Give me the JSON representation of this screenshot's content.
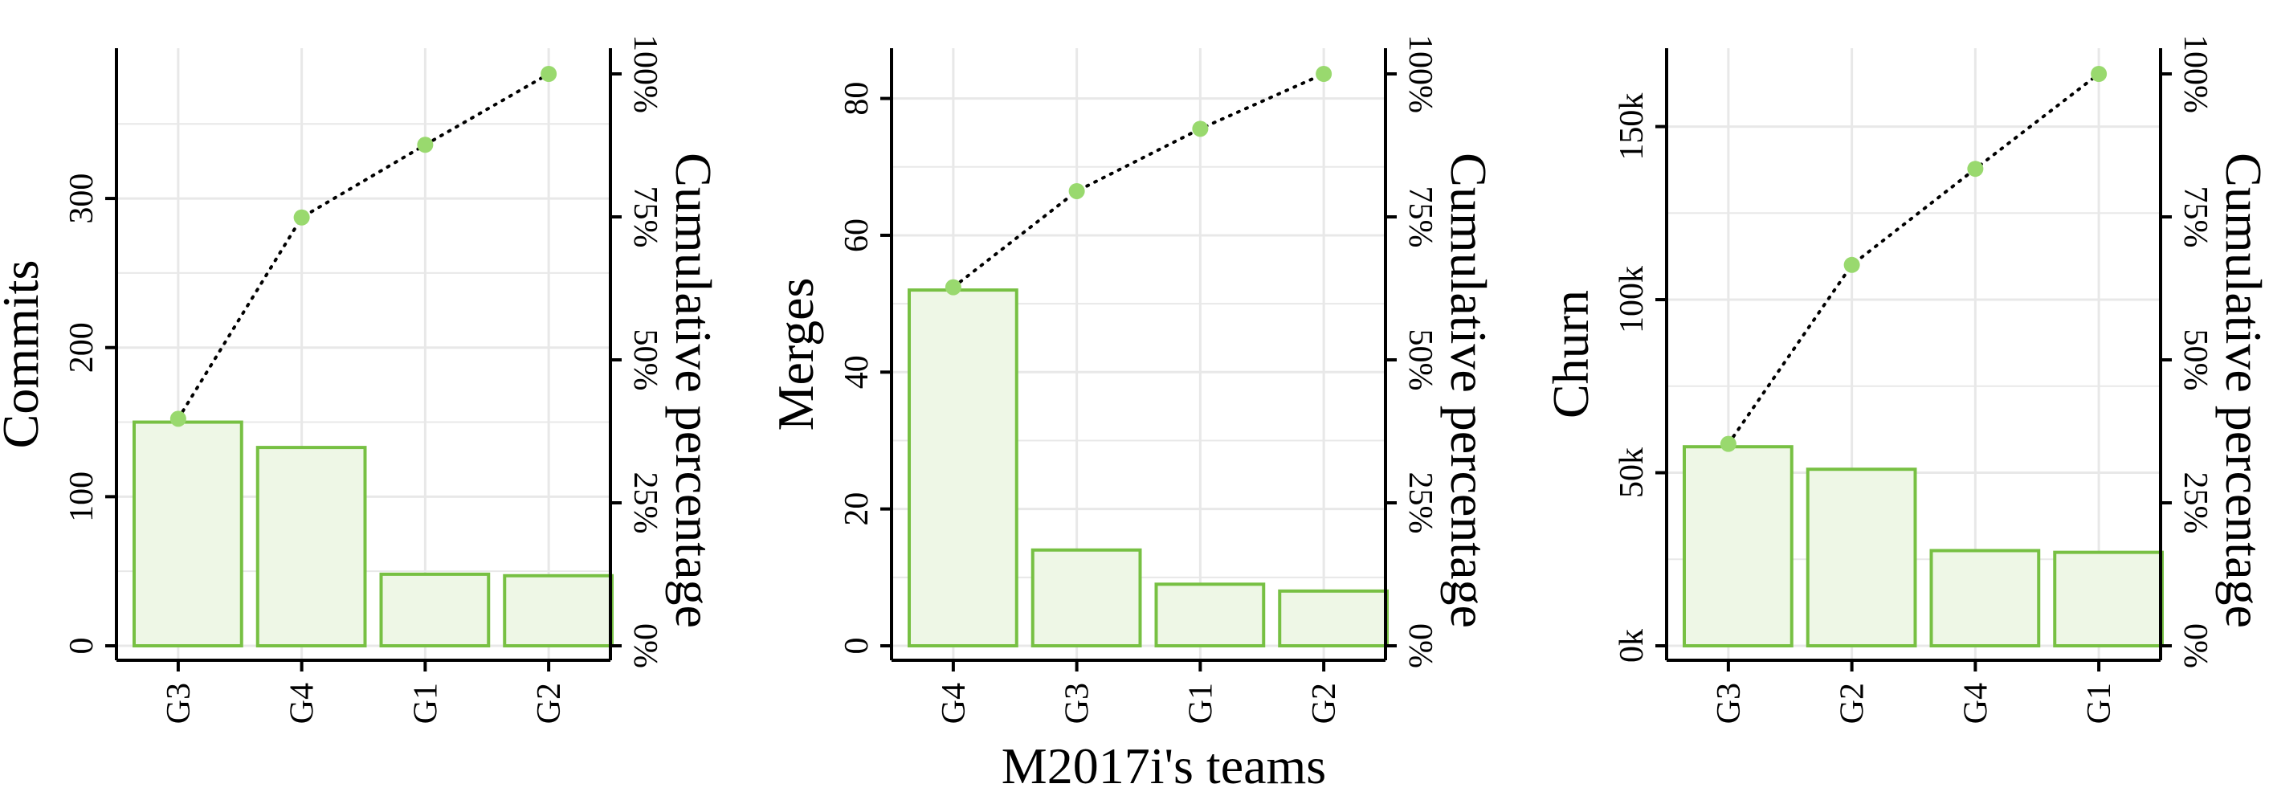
{
  "figure": {
    "xlabel": "M2017i's teams",
    "colors": {
      "bar_fill": "#eef7e6",
      "bar_stroke": "#77c043",
      "point": "#99d96e",
      "line": "#000000",
      "grid": "#e8e8e8",
      "axis": "#000000"
    }
  },
  "chart_data": [
    {
      "type": "bar",
      "categories": [
        "G3",
        "G4",
        "G1",
        "G2"
      ],
      "values": [
        150,
        133,
        48,
        47
      ],
      "cumulative_percent": [
        39.7,
        74.9,
        87.6,
        100
      ],
      "ylabel": "Commits",
      "y2label": "Cumulative percentage",
      "ylim": [
        0,
        390
      ],
      "yticks": [
        0,
        100,
        200,
        300
      ],
      "ytick_labels": [
        "0",
        "100",
        "200",
        "300"
      ],
      "y2ticks": [
        0,
        25,
        50,
        75,
        100
      ],
      "y2tick_labels": [
        "0%",
        "25%",
        "50%",
        "75%",
        "100%"
      ],
      "grid": true
    },
    {
      "type": "bar",
      "categories": [
        "G4",
        "G3",
        "G1",
        "G2"
      ],
      "values": [
        52,
        14,
        9,
        8
      ],
      "cumulative_percent": [
        62.7,
        79.5,
        90.4,
        100
      ],
      "ylabel": "Merges",
      "y2label": "Cumulative percentage",
      "ylim": [
        0,
        85
      ],
      "yticks": [
        0,
        20,
        40,
        60,
        80
      ],
      "ytick_labels": [
        "0",
        "20",
        "40",
        "60",
        "80"
      ],
      "y2ticks": [
        0,
        25,
        50,
        75,
        100
      ],
      "y2tick_labels": [
        "0%",
        "25%",
        "50%",
        "75%",
        "100%"
      ],
      "grid": true
    },
    {
      "type": "bar",
      "categories": [
        "G3",
        "G2",
        "G4",
        "G1"
      ],
      "values": [
        57500,
        51000,
        27500,
        27000
      ],
      "cumulative_percent": [
        35.3,
        66.6,
        83.4,
        100
      ],
      "ylabel": "Churn",
      "y2label": "Cumulative percentage",
      "ylim": [
        0,
        168000
      ],
      "yticks": [
        0,
        50000,
        100000,
        150000
      ],
      "ytick_labels": [
        "0k",
        "50k",
        "100k",
        "150k"
      ],
      "y2ticks": [
        0,
        25,
        50,
        75,
        100
      ],
      "y2tick_labels": [
        "0%",
        "25%",
        "50%",
        "75%",
        "100%"
      ],
      "grid": true
    }
  ]
}
